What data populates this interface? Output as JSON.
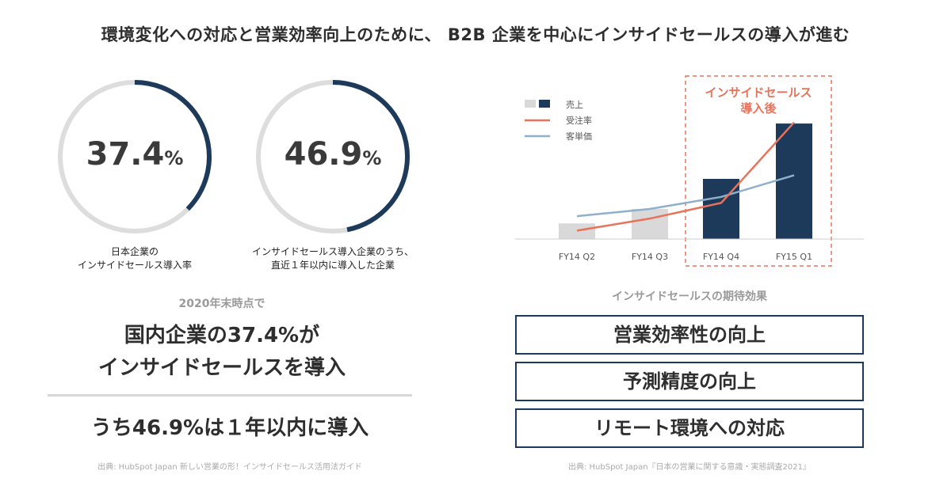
{
  "title": "環境変化への対応と営業効率向上のために、 B2B 企業を中心にインサイドセールスの導入が進む",
  "donuts": [
    {
      "value": 37.4,
      "number": "37.4",
      "unit": "%",
      "caption_line1": "日本企業の",
      "caption_line2": "インサイドセールス導入率"
    },
    {
      "value": 46.9,
      "number": "46.9",
      "unit": "%",
      "caption_line1": "インサイドセールス導入企業のうち、",
      "caption_line2": "直近１年以内に導入した企業"
    }
  ],
  "left_summary": {
    "subtitle": "2020年末時点で",
    "line1": "国内企業の37.4%が",
    "line2": "インサイドセールスを導入",
    "line3": "うち46.9%は１年以内に導入",
    "source": "出典: HubSpot Japan 新しい営業の形！インサイドセールス活用法ガイド"
  },
  "chart_data": {
    "type": "bar",
    "categories": [
      "FY14 Q2",
      "FY14 Q3",
      "FY14 Q4",
      "FY15 Q1"
    ],
    "ylim": [
      0,
      100
    ],
    "grid": false,
    "legend_position": "top-left",
    "series": [
      {
        "name": "売上",
        "type": "bar",
        "values": [
          13,
          25,
          50,
          96
        ]
      },
      {
        "name": "受注率",
        "type": "line",
        "values": [
          7,
          17,
          30,
          97
        ]
      },
      {
        "name": "客単価",
        "type": "line",
        "values": [
          19,
          25,
          35,
          53
        ]
      }
    ],
    "annotation": {
      "line1": "インサイドセールス",
      "line2": "導入後",
      "target_categories": [
        "FY14 Q4",
        "FY15 Q1"
      ]
    },
    "colors": {
      "bar_before": "#d9d9d9",
      "bar_after": "#1d3a5a",
      "conversion_line": "#e8735a",
      "unit_price_line": "#8fb0cc",
      "annotation": "#e8735a",
      "axis": "#cccccc"
    }
  },
  "effects": {
    "title": "インサイドセールスの期待効果",
    "items": [
      "営業効率性の向上",
      "予測精度の向上",
      "リモート環境への対応"
    ],
    "source": "出典: HubSpot Japan『日本の営業に関する意識・実態調査2021』"
  },
  "colors": {
    "donut_track": "#dddddd",
    "donut_value": "#1d3a5a"
  }
}
